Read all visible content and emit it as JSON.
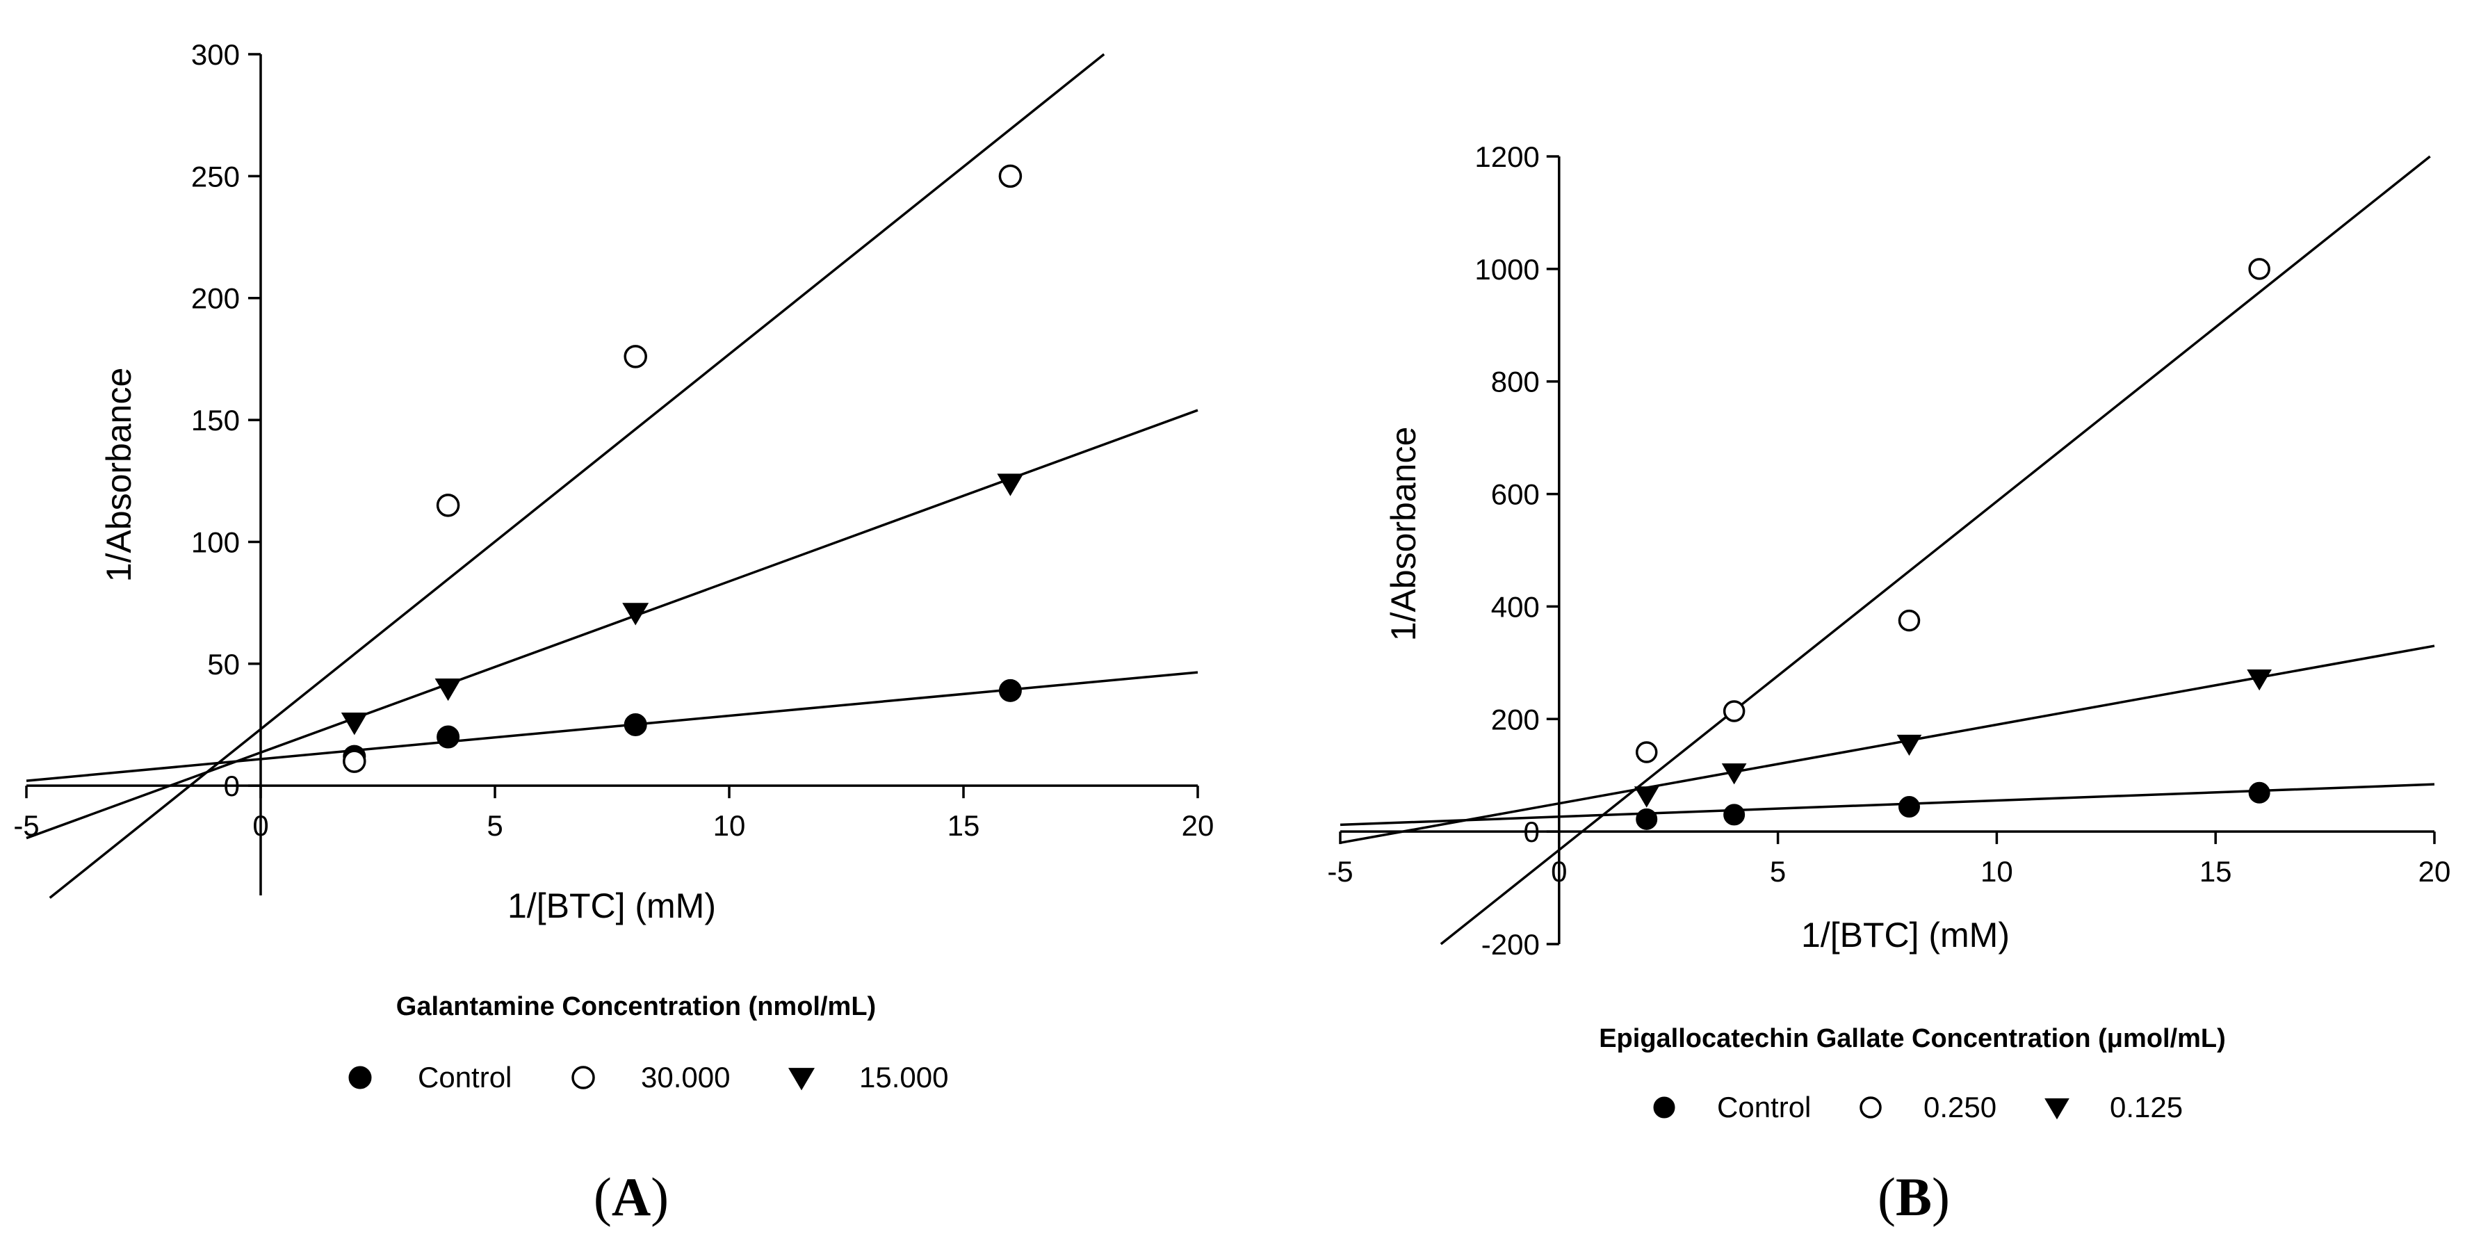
{
  "chart_data": [
    {
      "type": "line",
      "panel_label": "A",
      "title": "",
      "xlabel": "1/[BTC] (mM)",
      "ylabel": "1/Absorbance",
      "xlim": [
        -5,
        20
      ],
      "ylim": [
        -45,
        300
      ],
      "x_ticks": [
        -5,
        0,
        5,
        10,
        15,
        20
      ],
      "y_ticks": [
        0,
        50,
        100,
        150,
        200,
        250,
        300
      ],
      "legend_title": "Galantamine Concentration (nmol/mL)",
      "series": [
        {
          "name": "Control",
          "marker": "filled-circle",
          "x": [
            2,
            4,
            8,
            16
          ],
          "y": [
            12,
            20,
            25,
            39
          ],
          "fit_line": {
            "x": [
              -5,
              20
            ],
            "y": [
              2,
              46.5
            ]
          }
        },
        {
          "name": "30.000",
          "marker": "open-circle",
          "x": [
            2,
            4,
            8,
            16
          ],
          "y": [
            10,
            115,
            176,
            250
          ],
          "fit_line": {
            "x": [
              -4.5,
              18
            ],
            "y": [
              -46,
              300
            ]
          }
        },
        {
          "name": "15.000",
          "marker": "filled-triangle-down",
          "x": [
            2,
            4,
            8,
            16
          ],
          "y": [
            26,
            40,
            71,
            124
          ],
          "fit_line": {
            "x": [
              -5,
              20
            ],
            "y": [
              -21.5,
              154
            ]
          }
        }
      ]
    },
    {
      "type": "line",
      "panel_label": "B",
      "title": "",
      "xlabel": "1/[BTC] (mM)",
      "ylabel": "1/Absorbance",
      "xlim": [
        -5,
        20
      ],
      "ylim": [
        -200,
        1200
      ],
      "x_ticks": [
        -5,
        0,
        5,
        10,
        15,
        20
      ],
      "y_ticks": [
        -200,
        0,
        200,
        400,
        600,
        800,
        1000,
        1200
      ],
      "legend_title": "Epigallocatechin Gallate Concentration (μmol/mL)",
      "series": [
        {
          "name": "Control",
          "marker": "filled-circle",
          "x": [
            2,
            4,
            8,
            16
          ],
          "y": [
            22,
            30,
            44,
            69
          ],
          "fit_line": {
            "x": [
              -5,
              20
            ],
            "y": [
              12,
              84
            ]
          }
        },
        {
          "name": "0.250",
          "marker": "open-circle",
          "x": [
            2,
            4,
            8,
            16
          ],
          "y": [
            141,
            214,
            375,
            1000
          ],
          "fit_line": {
            "x": [
              -2.7,
              19.9
            ],
            "y": [
              -200,
              1200
            ]
          }
        },
        {
          "name": "0.125",
          "marker": "filled-triangle-down",
          "x": [
            2,
            4,
            8,
            16
          ],
          "y": [
            64,
            105,
            156,
            272
          ],
          "fit_line": {
            "x": [
              -5,
              20
            ],
            "y": [
              -20,
              330
            ]
          }
        }
      ]
    }
  ]
}
